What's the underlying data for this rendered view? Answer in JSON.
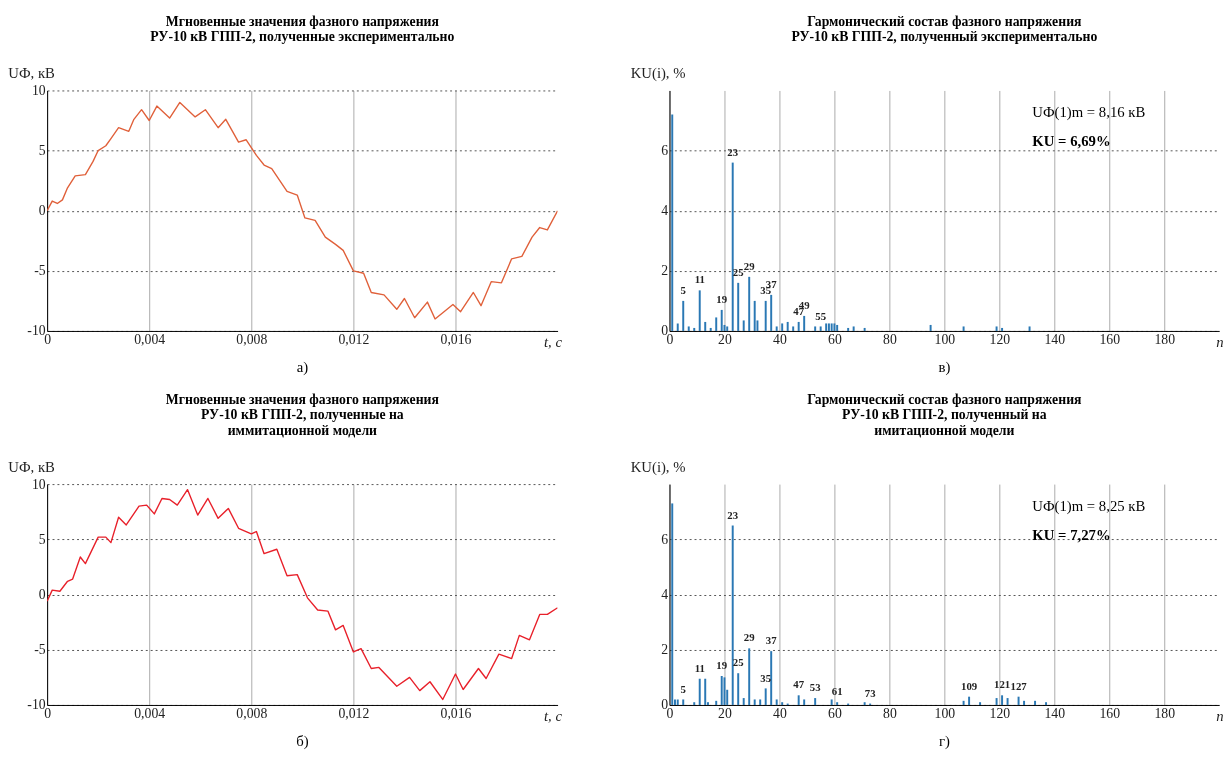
{
  "chart_data": [
    {
      "type": "line",
      "title": "Мгновенные значения фазного напряжения\nРУ-10 кВ ГПП-2, полученные экспериментально",
      "xlabel": "t, с",
      "ylabel": "UФ, кВ",
      "color": "#e0603a",
      "x": [
        0,
        0.0002,
        0.0004,
        0.0006,
        0.0008,
        0.0011,
        0.0015,
        0.0018,
        0.002,
        0.0023,
        0.0025,
        0.0028,
        0.0032,
        0.0034,
        0.0037,
        0.004,
        0.0043,
        0.0048,
        0.0052,
        0.0058,
        0.0062,
        0.0067,
        0.007,
        0.0075,
        0.0078,
        0.0082,
        0.0085,
        0.0088,
        0.0094,
        0.0098,
        0.0101,
        0.0105,
        0.0109,
        0.0113,
        0.0116,
        0.012,
        0.0124,
        0.0127,
        0.0132,
        0.0137,
        0.014,
        0.0144,
        0.0149,
        0.0152,
        0.0159,
        0.0162,
        0.0167,
        0.017,
        0.0174,
        0.0178,
        0.0182,
        0.0186,
        0.019,
        0.0193,
        0.0196,
        0.02
      ],
      "values": [
        0,
        0.8,
        0.6,
        0.9,
        1.9,
        2.9,
        3.0,
        4.1,
        5.0,
        5.4,
        6.0,
        6.9,
        6.6,
        7.6,
        8.4,
        7.5,
        8.7,
        7.7,
        9.0,
        7.8,
        8.4,
        6.9,
        7.6,
        5.7,
        5.9,
        4.6,
        3.8,
        3.5,
        1.6,
        1.3,
        -0.6,
        -0.8,
        -2.2,
        -2.8,
        -3.3,
        -5.0,
        -5.2,
        -6.8,
        -7.0,
        -8.2,
        -7.3,
        -8.9,
        -7.6,
        -9.0,
        -7.8,
        -8.4,
        -6.8,
        -7.9,
        -5.9,
        -6.0,
        -4.0,
        -3.8,
        -2.2,
        -1.4,
        -1.6,
        0
      ],
      "xlim": [
        0,
        0.02
      ],
      "xticks": [
        0,
        {
          "value": 0.004,
          "label": "0,004"
        },
        {
          "value": 0.008,
          "label": "0,008"
        },
        {
          "value": 0.012,
          "label": "0,012"
        },
        {
          "value": 0.016,
          "label": "0,016"
        }
      ],
      "ylim": [
        -10,
        10
      ],
      "yticks": [
        -10,
        -5,
        0,
        5,
        10
      ],
      "grid": true,
      "annotations": [
        "а)"
      ]
    },
    {
      "type": "bar",
      "title": "Гармонический состав фазного напряжения\nРУ-10 кВ ГПП-2, полученный экспериментально",
      "xlabel": "n",
      "ylabel": "KU(i), %",
      "color": "#2a78b4",
      "x": [
        1,
        3,
        5,
        7,
        9,
        11,
        13,
        15,
        17,
        19,
        20,
        21,
        23,
        25,
        27,
        29,
        31,
        32,
        35,
        37,
        39,
        41,
        43,
        45,
        47,
        49,
        53,
        55,
        57,
        58,
        59,
        60,
        61,
        65,
        67,
        71,
        95,
        107,
        119,
        121,
        131
      ],
      "values": [
        7.2,
        0.25,
        1.0,
        0.15,
        0.1,
        1.35,
        0.3,
        0.1,
        0.45,
        0.7,
        0.2,
        0.15,
        5.6,
        1.6,
        0.35,
        1.8,
        1.0,
        0.35,
        1.0,
        1.2,
        0.15,
        0.25,
        0.3,
        0.15,
        0.3,
        0.5,
        0.15,
        0.15,
        0.25,
        0.25,
        0.25,
        0.25,
        0.2,
        0.1,
        0.15,
        0.1,
        0.2,
        0.15,
        0.15,
        0.1,
        0.15
      ],
      "xlim": [
        0,
        200
      ],
      "xticks": [
        0,
        20,
        40,
        60,
        80,
        100,
        120,
        140,
        160,
        180
      ],
      "ylim": [
        0,
        8
      ],
      "yticks": [
        0,
        2,
        4,
        6
      ],
      "grid": true,
      "annotations": [
        {
          "text": "5",
          "x": 5,
          "y": 1.0
        },
        {
          "text": "11",
          "x": 11,
          "y": 1.35
        },
        {
          "text": "19",
          "x": 19,
          "y": 0.7
        },
        {
          "text": "23",
          "x": 23,
          "y": 5.6
        },
        {
          "text": "25",
          "x": 25,
          "y": 1.6
        },
        {
          "text": "29",
          "x": 29,
          "y": 1.8
        },
        {
          "text": "35",
          "x": 35,
          "y": 1.0
        },
        {
          "text": "37",
          "x": 37,
          "y": 1.2
        },
        {
          "text": "47",
          "x": 47,
          "y": 0.3
        },
        {
          "text": "49",
          "x": 49,
          "y": 0.5
        },
        {
          "text": "55",
          "x": 55,
          "y": 0.15
        },
        "UФ(1)m = 8,16 кВ",
        "KU = 6,69%",
        "в)"
      ]
    },
    {
      "type": "line",
      "title": "Мгновенные значения фазного напряжения\nРУ-10 кВ ГПП-2, полученные на\nиммитационной модели",
      "xlabel": "t, с",
      "ylabel": "UФ, кВ",
      "color": "#e8202a",
      "x": [
        0,
        0.0002,
        0.0005,
        0.0008,
        0.001,
        0.0013,
        0.0015,
        0.002,
        0.0023,
        0.0025,
        0.0028,
        0.0031,
        0.0036,
        0.0039,
        0.0042,
        0.0045,
        0.0048,
        0.0051,
        0.0055,
        0.0059,
        0.0063,
        0.0067,
        0.0071,
        0.0075,
        0.008,
        0.0082,
        0.0085,
        0.009,
        0.0094,
        0.0098,
        0.0102,
        0.0106,
        0.011,
        0.0113,
        0.0116,
        0.012,
        0.0123,
        0.0127,
        0.013,
        0.0137,
        0.0142,
        0.0146,
        0.015,
        0.0155,
        0.016,
        0.0163,
        0.0169,
        0.0172,
        0.0177,
        0.0182,
        0.0185,
        0.0189,
        0.0193,
        0.0196,
        0.02
      ],
      "values": [
        -0.6,
        0.4,
        0.3,
        1.2,
        1.4,
        3.4,
        2.8,
        5.2,
        5.2,
        4.7,
        7.0,
        6.3,
        8.0,
        8.1,
        7.3,
        8.7,
        8.6,
        8.1,
        9.5,
        7.2,
        8.7,
        6.9,
        7.8,
        6.0,
        5.5,
        5.7,
        3.7,
        4.1,
        1.7,
        1.8,
        -0.3,
        -1.4,
        -1.5,
        -3.2,
        -2.8,
        -5.2,
        -4.9,
        -6.7,
        -6.6,
        -8.3,
        -7.5,
        -8.7,
        -7.9,
        -9.5,
        -7.2,
        -8.6,
        -6.7,
        -7.6,
        -5.4,
        -5.8,
        -3.7,
        -4.1,
        -1.8,
        -1.8,
        -1.2
      ],
      "xlim": [
        0,
        0.02
      ],
      "xticks": [
        0,
        {
          "value": 0.004,
          "label": "0,004"
        },
        {
          "value": 0.008,
          "label": "0,008"
        },
        {
          "value": 0.012,
          "label": "0,012"
        },
        {
          "value": 0.016,
          "label": "0,016"
        }
      ],
      "ylim": [
        -10,
        10
      ],
      "yticks": [
        -10,
        -5,
        0,
        5,
        10
      ],
      "grid": true,
      "annotations": [
        "б)"
      ]
    },
    {
      "type": "bar",
      "title": "Гармонический состав фазного напряжения\nРУ-10 кВ ГПП-2, полученный на\nимитационной модели",
      "xlabel": "n",
      "ylabel": "KU(i), %",
      "color": "#2a78b4",
      "x": [
        1,
        2,
        3,
        5,
        9,
        11,
        13,
        14,
        17,
        19,
        20,
        21,
        23,
        25,
        27,
        29,
        31,
        33,
        35,
        37,
        39,
        41,
        43,
        47,
        49,
        53,
        59,
        61,
        65,
        71,
        73,
        107,
        109,
        113,
        119,
        121,
        123,
        127,
        129,
        133,
        137
      ],
      "values": [
        7.3,
        0.2,
        0.2,
        0.2,
        0.1,
        0.95,
        0.95,
        0.1,
        0.15,
        1.05,
        1.0,
        0.55,
        6.5,
        1.15,
        0.25,
        2.05,
        0.2,
        0.2,
        0.6,
        1.95,
        0.2,
        0.1,
        0.05,
        0.35,
        0.2,
        0.25,
        0.2,
        0.1,
        0.05,
        0.1,
        0.05,
        0.15,
        0.3,
        0.1,
        0.25,
        0.35,
        0.25,
        0.3,
        0.15,
        0.15,
        0.1
      ],
      "xlim": [
        0,
        200
      ],
      "xticks": [
        0,
        20,
        40,
        60,
        80,
        100,
        120,
        140,
        160,
        180
      ],
      "ylim": [
        0,
        8
      ],
      "yticks": [
        0,
        2,
        4,
        6
      ],
      "grid": true,
      "annotations": [
        {
          "text": "5",
          "x": 5,
          "y": 0.2
        },
        {
          "text": "11",
          "x": 11,
          "y": 0.95
        },
        {
          "text": "19",
          "x": 19,
          "y": 1.05
        },
        {
          "text": "23",
          "x": 23,
          "y": 6.5
        },
        {
          "text": "25",
          "x": 25,
          "y": 1.15
        },
        {
          "text": "29",
          "x": 29,
          "y": 2.05
        },
        {
          "text": "35",
          "x": 35,
          "y": 0.6
        },
        {
          "text": "37",
          "x": 37,
          "y": 1.95
        },
        {
          "text": "47",
          "x": 47,
          "y": 0.35
        },
        {
          "text": "53",
          "x": 53,
          "y": 0.25
        },
        {
          "text": "61",
          "x": 61,
          "y": 0.1
        },
        {
          "text": "73",
          "x": 73,
          "y": 0.05
        },
        {
          "text": "109",
          "x": 109,
          "y": 0.3
        },
        {
          "text": "121",
          "x": 121,
          "y": 0.35
        },
        {
          "text": "127",
          "x": 127,
          "y": 0.3
        },
        "UФ(1)m = 8,25 кВ",
        "KU = 7,27%",
        "г)"
      ]
    }
  ]
}
